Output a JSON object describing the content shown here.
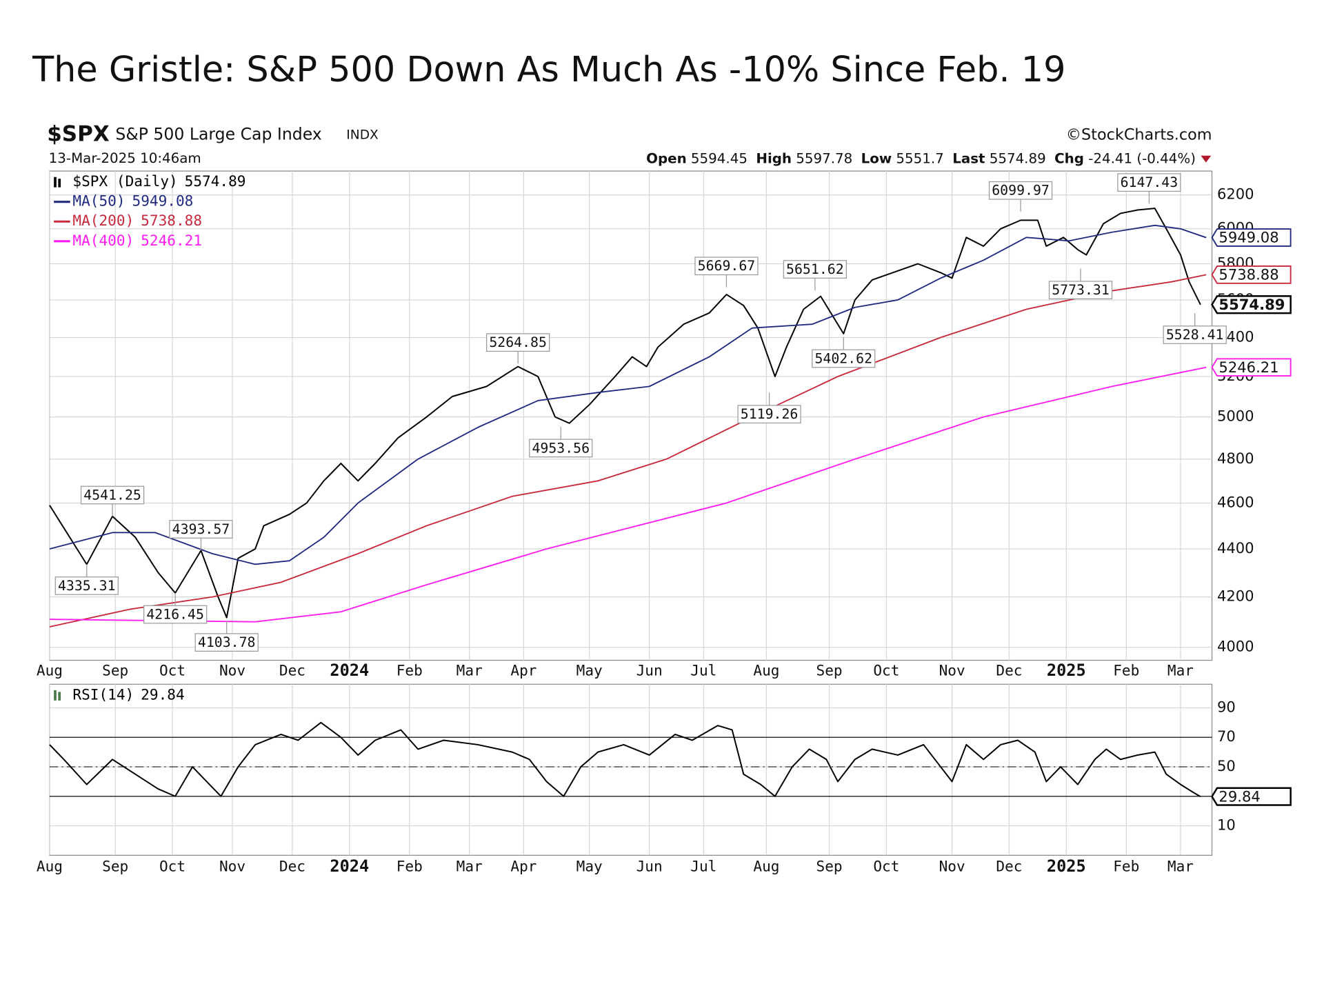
{
  "title": "The Gristle: S&P 500 Down As Much As -10% Since Feb. 19",
  "header": {
    "symbol": "$SPX",
    "name": "S&P 500 Large Cap Index",
    "exchange": "INDX",
    "date": "13-Mar-2025 10:46am",
    "source": "©StockCharts.com",
    "quote": [
      {
        "label": "Open",
        "value": 5594.45
      },
      {
        "label": "High",
        "value": 5597.78
      },
      {
        "label": "Low",
        "value": 5551.7
      },
      {
        "label": "Last",
        "value": 5574.89
      },
      {
        "label": "Chg",
        "value": -24.41,
        "change_pct": "(-0.44%)"
      }
    ]
  },
  "chart_data": [
    {
      "type": "line",
      "log_scale": true,
      "grid": true,
      "legend": "top-left",
      "xlim": [
        0,
        407
      ],
      "ylim": [
        3950,
        6345
      ],
      "xticks": [
        {
          "value": 0,
          "label": "Aug"
        },
        {
          "value": 23,
          "label": "Sep"
        },
        {
          "value": 43,
          "label": "Oct"
        },
        {
          "value": 64,
          "label": "Nov"
        },
        {
          "value": 85,
          "label": "Dec"
        },
        {
          "value": 105,
          "label": "2024"
        },
        {
          "value": 126,
          "label": "Feb"
        },
        {
          "value": 147,
          "label": "Mar"
        },
        {
          "value": 166,
          "label": "Apr"
        },
        {
          "value": 189,
          "label": "May"
        },
        {
          "value": 210,
          "label": "Jun"
        },
        {
          "value": 229,
          "label": "Jul"
        },
        {
          "value": 251,
          "label": "Aug"
        },
        {
          "value": 273,
          "label": "Sep"
        },
        {
          "value": 293,
          "label": "Oct"
        },
        {
          "value": 316,
          "label": "Nov"
        },
        {
          "value": 336,
          "label": "Dec"
        },
        {
          "value": 356,
          "label": "2025"
        },
        {
          "value": 377,
          "label": "Feb"
        },
        {
          "value": 396,
          "label": "Mar"
        }
      ],
      "yticks": [
        4000,
        4200,
        4400,
        4600,
        4800,
        5000,
        5200,
        5400,
        5600,
        5800,
        6000,
        6200
      ],
      "series": [
        {
          "name": "$SPX (Daily)",
          "last": 5574.89,
          "color": "#000000",
          "x": [
            0,
            13,
            22,
            30,
            38,
            44,
            53,
            59,
            62,
            66,
            72,
            75,
            84,
            90,
            96,
            102,
            108,
            114,
            122,
            132,
            141,
            153,
            164,
            171,
            177,
            182,
            189,
            198,
            204,
            209,
            213,
            222,
            231,
            237,
            243,
            248,
            254,
            258,
            264,
            270,
            278,
            282,
            288,
            297,
            304,
            312,
            316,
            321,
            327,
            333,
            340,
            346,
            349,
            355,
            360,
            363,
            369,
            375,
            381,
            387,
            391,
            396,
            399,
            403
          ],
          "values": [
            4590,
            4335,
            4541,
            4450,
            4300,
            4216,
            4393,
            4200,
            4117,
            4360,
            4400,
            4500,
            4550,
            4600,
            4700,
            4780,
            4700,
            4780,
            4900,
            5000,
            5100,
            5150,
            5250,
            5200,
            5000,
            4970,
            5060,
            5200,
            5300,
            5250,
            5350,
            5470,
            5530,
            5630,
            5570,
            5450,
            5200,
            5350,
            5550,
            5620,
            5420,
            5600,
            5710,
            5760,
            5800,
            5750,
            5720,
            5950,
            5900,
            6000,
            6050,
            6050,
            5900,
            5950,
            5880,
            5850,
            6030,
            6090,
            6110,
            6120,
            6000,
            5850,
            5700,
            5574.89
          ]
        },
        {
          "name": "MA(50)",
          "last": 5949.08,
          "color": "#1f2a80",
          "x": [
            0,
            22,
            37,
            57,
            72,
            84,
            96,
            108,
            129,
            150,
            171,
            192,
            210,
            231,
            246,
            267,
            282,
            297,
            312,
            327,
            342,
            357,
            372,
            387,
            396,
            405
          ],
          "values": [
            4400,
            4470,
            4470,
            4380,
            4335,
            4350,
            4450,
            4600,
            4800,
            4950,
            5080,
            5120,
            5150,
            5300,
            5450,
            5470,
            5560,
            5600,
            5720,
            5820,
            5950,
            5930,
            5980,
            6020,
            6000,
            5949.08
          ]
        },
        {
          "name": "MA(200)",
          "last": 5738.88,
          "color": "#c8283c",
          "x": [
            0,
            28,
            57,
            81,
            108,
            132,
            162,
            192,
            216,
            246,
            276,
            312,
            342,
            372,
            393,
            405
          ],
          "values": [
            4080,
            4150,
            4200,
            4260,
            4380,
            4500,
            4630,
            4700,
            4800,
            5000,
            5200,
            5400,
            5550,
            5650,
            5700,
            5738.88
          ]
        },
        {
          "name": "MA(400)",
          "last": 5246.21,
          "color": "#ff1cf0",
          "x": [
            0,
            72,
            102,
            132,
            174,
            237,
            282,
            327,
            372,
            405
          ],
          "values": [
            4110,
            4100,
            4140,
            4250,
            4400,
            4600,
            4800,
            5000,
            5150,
            5246.21
          ]
        }
      ],
      "annotations": [
        {
          "x": 13,
          "value": 4335.31,
          "position": "below"
        },
        {
          "x": 22,
          "value": 4541.25,
          "position": "above"
        },
        {
          "x": 44,
          "value": 4216.45,
          "position": "below"
        },
        {
          "x": 53,
          "value": 4393.57,
          "position": "above"
        },
        {
          "x": 62,
          "value": 4103.78,
          "position": "below"
        },
        {
          "x": 164,
          "value": 5264.85,
          "position": "above"
        },
        {
          "x": 179,
          "value": 4953.56,
          "position": "below"
        },
        {
          "x": 237,
          "value": 5669.67,
          "position": "above"
        },
        {
          "x": 252,
          "value": 5119.26,
          "position": "below"
        },
        {
          "x": 268,
          "value": 5651.62,
          "position": "above"
        },
        {
          "x": 278,
          "value": 5402.62,
          "position": "below"
        },
        {
          "x": 340,
          "value": 6099.97,
          "position": "above"
        },
        {
          "x": 361,
          "value": 5773.31,
          "position": "below"
        },
        {
          "x": 385,
          "value": 6147.43,
          "position": "above"
        },
        {
          "x": 401,
          "value": 5528.41,
          "position": "below"
        }
      ]
    },
    {
      "type": "line",
      "grid": true,
      "legend": "top-left",
      "xlim": [
        0,
        407
      ],
      "ylim": [
        -10,
        106
      ],
      "xticks": [
        {
          "value": 0,
          "label": "Aug"
        },
        {
          "value": 23,
          "label": "Sep"
        },
        {
          "value": 43,
          "label": "Oct"
        },
        {
          "value": 64,
          "label": "Nov"
        },
        {
          "value": 85,
          "label": "Dec"
        },
        {
          "value": 105,
          "label": "2024"
        },
        {
          "value": 126,
          "label": "Feb"
        },
        {
          "value": 147,
          "label": "Mar"
        },
        {
          "value": 166,
          "label": "Apr"
        },
        {
          "value": 189,
          "label": "May"
        },
        {
          "value": 210,
          "label": "Jun"
        },
        {
          "value": 229,
          "label": "Jul"
        },
        {
          "value": 251,
          "label": "Aug"
        },
        {
          "value": 273,
          "label": "Sep"
        },
        {
          "value": 293,
          "label": "Oct"
        },
        {
          "value": 316,
          "label": "Nov"
        },
        {
          "value": 336,
          "label": "Dec"
        },
        {
          "value": 356,
          "label": "2025"
        },
        {
          "value": 377,
          "label": "Feb"
        },
        {
          "value": 396,
          "label": "Mar"
        }
      ],
      "yticks": [
        10,
        30,
        50,
        70,
        90
      ],
      "reference_lines": [
        {
          "value": 70,
          "style": "solid"
        },
        {
          "value": 50,
          "style": "dashdot"
        },
        {
          "value": 30,
          "style": "solid"
        }
      ],
      "series": [
        {
          "name": "RSI(14)",
          "last": 29.84,
          "color": "#000000",
          "x": [
            0,
            5,
            13,
            22,
            30,
            38,
            44,
            50,
            60,
            66,
            72,
            81,
            87,
            95,
            102,
            108,
            114,
            123,
            129,
            138,
            150,
            162,
            168,
            174,
            180,
            186,
            192,
            201,
            210,
            219,
            225,
            234,
            239,
            243,
            249,
            254,
            260,
            266,
            272,
            276,
            282,
            288,
            297,
            306,
            312,
            316,
            321,
            327,
            333,
            339,
            345,
            349,
            354,
            360,
            366,
            370,
            375,
            381,
            387,
            391,
            396,
            401,
            403
          ],
          "values": [
            65,
            55,
            38,
            55,
            45,
            35,
            30,
            50,
            30,
            50,
            65,
            72,
            68,
            80,
            70,
            58,
            68,
            75,
            62,
            68,
            65,
            60,
            55,
            40,
            30,
            50,
            60,
            65,
            58,
            72,
            68,
            78,
            75,
            45,
            38,
            30,
            50,
            62,
            55,
            40,
            55,
            62,
            58,
            65,
            50,
            40,
            65,
            55,
            65,
            68,
            60,
            40,
            50,
            38,
            55,
            62,
            55,
            58,
            60,
            45,
            38,
            32,
            29.84
          ]
        }
      ]
    }
  ]
}
